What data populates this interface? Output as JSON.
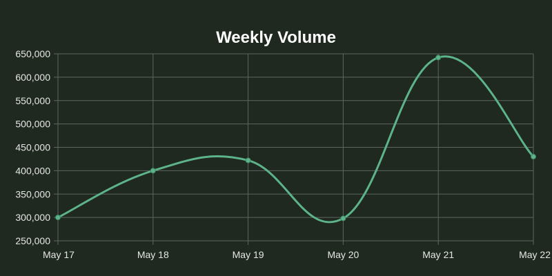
{
  "chart_data": {
    "type": "line",
    "title": "Weekly Volume",
    "xlabel": "",
    "ylabel": "",
    "categories": [
      "May 17",
      "May 18",
      "May 19",
      "May 20",
      "May 21",
      "May 22"
    ],
    "series": [
      {
        "values": [
          300000,
          400000,
          422000,
          298000,
          642000,
          430000
        ]
      }
    ],
    "ylim": [
      250000,
      650000
    ],
    "yticks": [
      250000,
      300000,
      350000,
      400000,
      450000,
      500000,
      550000,
      600000,
      650000
    ],
    "ytick_labels": [
      "250,000",
      "300,000",
      "350,000",
      "400,000",
      "450,000",
      "500,000",
      "550,000",
      "600,000",
      "650,000"
    ],
    "grid": true,
    "legend": "none",
    "colors": {
      "background": "#1f2920",
      "line": "#5db38a",
      "grid": "#5e675f",
      "text": "#e6e6e6",
      "title": "#ffffff"
    }
  }
}
